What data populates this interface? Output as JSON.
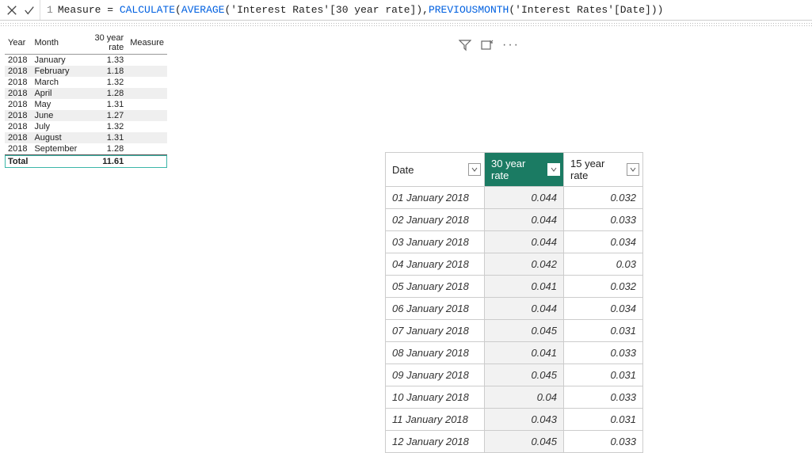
{
  "formula_bar": {
    "line_number": "1",
    "measure_name": "Measure",
    "equals": " = ",
    "fn_calculate": "CALCULATE",
    "fn_average": "AVERAGE",
    "table_col_30yr": "'Interest Rates'[30 year rate]",
    "fn_prevmonth": "PREVIOUSMONTH",
    "table_col_date": "'Interest Rates'[Date]"
  },
  "summary_table": {
    "headers": {
      "year": "Year",
      "month": "Month",
      "rate": "30 year rate",
      "measure": "Measure"
    },
    "rows": [
      {
        "year": "2018",
        "month": "January",
        "rate": "1.33"
      },
      {
        "year": "2018",
        "month": "February",
        "rate": "1.18"
      },
      {
        "year": "2018",
        "month": "March",
        "rate": "1.32"
      },
      {
        "year": "2018",
        "month": "April",
        "rate": "1.28"
      },
      {
        "year": "2018",
        "month": "May",
        "rate": "1.31"
      },
      {
        "year": "2018",
        "month": "June",
        "rate": "1.27"
      },
      {
        "year": "2018",
        "month": "July",
        "rate": "1.32"
      },
      {
        "year": "2018",
        "month": "August",
        "rate": "1.31"
      },
      {
        "year": "2018",
        "month": "September",
        "rate": "1.28"
      }
    ],
    "total_label": "Total",
    "total_rate": "11.61"
  },
  "data_grid": {
    "headers": {
      "date": "Date",
      "rate30": "30 year rate",
      "rate15": "15 year rate"
    },
    "selected_column": "rate30",
    "rows": [
      {
        "date": "01 January 2018",
        "rate30": "0.044",
        "rate15": "0.032"
      },
      {
        "date": "02 January 2018",
        "rate30": "0.044",
        "rate15": "0.033"
      },
      {
        "date": "03 January 2018",
        "rate30": "0.044",
        "rate15": "0.034"
      },
      {
        "date": "04 January 2018",
        "rate30": "0.042",
        "rate15": "0.03"
      },
      {
        "date": "05 January 2018",
        "rate30": "0.041",
        "rate15": "0.032"
      },
      {
        "date": "06 January 2018",
        "rate30": "0.044",
        "rate15": "0.034"
      },
      {
        "date": "07 January 2018",
        "rate30": "0.045",
        "rate15": "0.031"
      },
      {
        "date": "08 January 2018",
        "rate30": "0.041",
        "rate15": "0.033"
      },
      {
        "date": "09 January 2018",
        "rate30": "0.045",
        "rate15": "0.031"
      },
      {
        "date": "10 January 2018",
        "rate30": "0.04",
        "rate15": "0.033"
      },
      {
        "date": "11 January 2018",
        "rate30": "0.043",
        "rate15": "0.031"
      },
      {
        "date": "12 January 2018",
        "rate30": "0.045",
        "rate15": "0.033"
      }
    ]
  },
  "colors": {
    "header_selected_bg": "#1b7b63",
    "function_color": "#0060e0",
    "row_alt_bg": "#efefef",
    "border_color": "#cccccc",
    "selected_col_bg": "#f2f2f2"
  }
}
